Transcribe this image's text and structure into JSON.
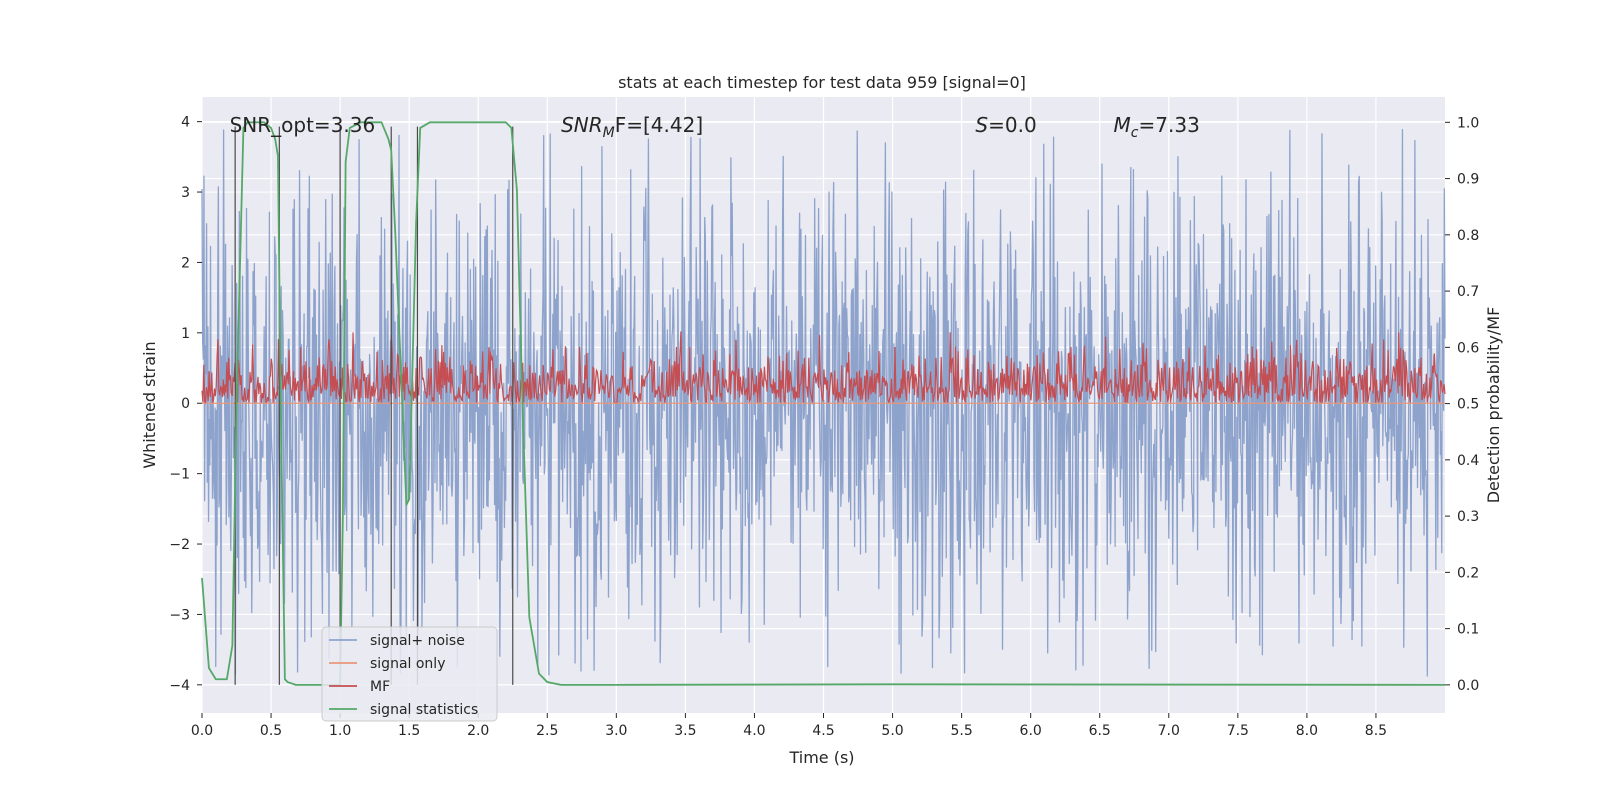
{
  "chart_data": {
    "type": "line",
    "title": "stats at each timestep for test data 959 [signal=0]",
    "xlabel": "Time (s)",
    "ylabel": "Whitened strain",
    "y2label": "Detection probability/MF",
    "xlim": [
      0.0,
      9.0
    ],
    "ylim": [
      -4.4,
      4.35
    ],
    "y2lim": [
      -0.05,
      1.045
    ],
    "x_ticks": [
      "0.0",
      "0.5",
      "1.0",
      "1.5",
      "2.0",
      "2.5",
      "3.0",
      "3.5",
      "4.0",
      "4.5",
      "5.0",
      "5.5",
      "6.0",
      "6.5",
      "7.0",
      "7.5",
      "8.0",
      "8.5"
    ],
    "y_ticks": [
      "4",
      "3",
      "2",
      "1",
      "0",
      "−1",
      "−2",
      "−3",
      "−4"
    ],
    "y2_ticks": [
      "1.0",
      "0.9",
      "0.8",
      "0.7",
      "0.6",
      "0.5",
      "0.4",
      "0.3",
      "0.2",
      "0.1",
      "0.0"
    ],
    "annotations": [
      {
        "id": "snr-opt",
        "base": "SNR_opt=3.36",
        "x": 0.2
      },
      {
        "id": "snr-mf",
        "main": "SNR",
        "sub": "M",
        "tail": "F=[4.42]",
        "x": 2.6
      },
      {
        "id": "s-stat",
        "main": "S",
        "tail": "=0.0",
        "x": 5.6
      },
      {
        "id": "mc-stat",
        "main": "M",
        "sub": "c",
        "tail": "=7.33",
        "x": 6.6
      }
    ],
    "vertical_lines": [
      0.24,
      0.56,
      1.0,
      1.37,
      1.56,
      2.25
    ],
    "series": [
      {
        "name": "signal+ noise",
        "color": "#8ea3cc",
        "axis": "left",
        "noise_amplitude": 2.2,
        "peak_range": [
          -3.9,
          3.9
        ]
      },
      {
        "name": "signal only",
        "color": "#e8977a",
        "axis": "left",
        "values": "flat zero"
      },
      {
        "name": "MF",
        "color": "#c44e52",
        "axis": "right",
        "baseline": 0.5,
        "peak": 0.63
      },
      {
        "name": "signal statistics",
        "color": "#55a868",
        "axis": "right",
        "x": [
          0.0,
          0.05,
          0.1,
          0.18,
          0.22,
          0.25,
          0.3,
          0.33,
          0.35,
          0.4,
          0.45,
          0.5,
          0.53,
          0.55,
          0.57,
          0.6,
          0.62,
          0.68,
          0.75,
          0.95,
          1.0,
          1.02,
          1.04,
          1.07,
          1.15,
          1.3,
          1.35,
          1.37,
          1.4,
          1.45,
          1.48,
          1.5,
          1.55,
          1.58,
          1.65,
          2.1,
          2.2,
          2.24,
          2.28,
          2.32,
          2.37,
          2.44,
          2.5,
          2.6,
          3.0,
          5.0,
          9.0
        ],
        "y": [
          0.19,
          0.03,
          0.01,
          0.01,
          0.07,
          0.5,
          0.99,
          1.0,
          1.0,
          1.0,
          1.0,
          0.99,
          0.97,
          0.94,
          0.5,
          0.01,
          0.005,
          0.0,
          0.0,
          0.0,
          0.0,
          0.3,
          0.93,
          0.99,
          1.0,
          1.0,
          0.97,
          0.95,
          0.8,
          0.5,
          0.32,
          0.33,
          0.82,
          0.99,
          1.0,
          1.0,
          1.0,
          0.99,
          0.88,
          0.5,
          0.12,
          0.02,
          0.005,
          0.0,
          0.0,
          0.001,
          0.0
        ]
      }
    ],
    "legend": {
      "position": "lower-left",
      "entries": [
        "signal+ noise",
        "signal only",
        "MF",
        "signal statistics"
      ]
    },
    "grid": true,
    "plot_background": "#eaeaf2"
  }
}
